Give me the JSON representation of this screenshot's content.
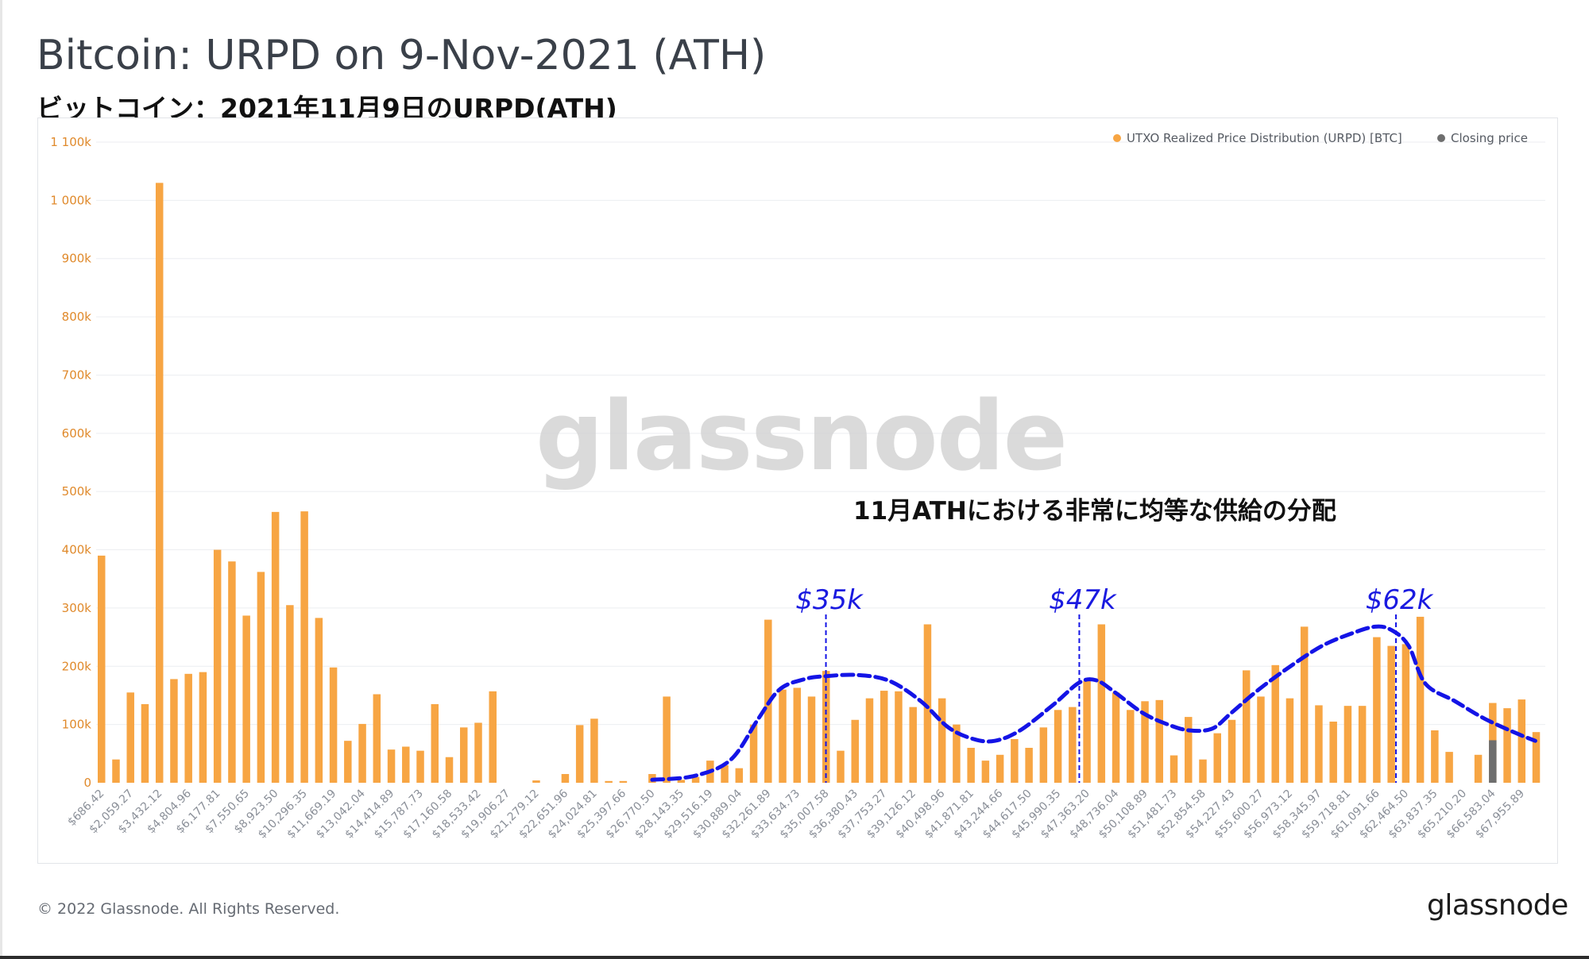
{
  "header": {
    "title": "Bitcoin: URPD on 9-Nov-2021 (ATH)",
    "subtitle": "ビットコイン：2021年11月9日のURPD(ATH)"
  },
  "footer": {
    "copyright": "© 2022 Glassnode. All Rights Reserved.",
    "logo": "glassnode"
  },
  "colors": {
    "bar": "#f7a543",
    "axis_text": "#e08a2c",
    "closing_price": "#6e6e6e",
    "curve": "#1414e6",
    "annotation_price": "#1a1ae0",
    "grid": "#eceef1",
    "watermark": "#d2d2d2"
  },
  "chart_data": {
    "type": "bar",
    "watermark": "glassnode",
    "legend": {
      "placement": "top-right",
      "items": [
        {
          "label": "UTXO Realized Price Distribution (URPD) [BTC]",
          "color": "#f7a543"
        },
        {
          "label": "Closing price",
          "color": "#6e6e6e"
        }
      ]
    },
    "ylim": [
      0,
      1100000
    ],
    "y_ticks": [
      {
        "value": 0,
        "label": "0"
      },
      {
        "value": 100000,
        "label": "100k"
      },
      {
        "value": 200000,
        "label": "200k"
      },
      {
        "value": 300000,
        "label": "300k"
      },
      {
        "value": 400000,
        "label": "400k"
      },
      {
        "value": 500000,
        "label": "500k"
      },
      {
        "value": 600000,
        "label": "600k"
      },
      {
        "value": 700000,
        "label": "700k"
      },
      {
        "value": 800000,
        "label": "800k"
      },
      {
        "value": 900000,
        "label": "900k"
      },
      {
        "value": 1000000,
        "label": "1 000k"
      },
      {
        "value": 1100000,
        "label": "1 100k"
      }
    ],
    "grid": true,
    "x_tick_labels": [
      "$686.42",
      "$2,059.27",
      "$3,432.12",
      "$4,804.96",
      "$6,177.81",
      "$7,550.65",
      "$8,923.50",
      "$10,296.35",
      "$11,669.19",
      "$13,042.04",
      "$14,414.89",
      "$15,787.73",
      "$17,160.58",
      "$18,533.42",
      "$19,906.27",
      "$21,279.12",
      "$22,651.96",
      "$24,024.81",
      "$25,397.66",
      "$26,770.50",
      "$28,143.35",
      "$29,516.19",
      "$30,889.04",
      "$32,261.89",
      "$33,634.73",
      "$35,007.58",
      "$36,380.43",
      "$37,753.27",
      "$39,126.12",
      "$40,498.96",
      "$41,871.81",
      "$43,244.66",
      "$44,617.50",
      "$45,990.35",
      "$47,363.20",
      "$48,736.04",
      "$50,108.89",
      "$51,481.73",
      "$52,854.58",
      "$54,227.43",
      "$55,600.27",
      "$56,973.12",
      "$58,345.97",
      "$59,718.81",
      "$61,091.66",
      "$62,464.50",
      "$63,837.35",
      "$65,210.20",
      "$66,583.04",
      "$67,955.89"
    ],
    "bin_width": 686.42,
    "bin_start": 686.42,
    "values": [
      390000,
      40000,
      155000,
      135000,
      1030000,
      178000,
      187000,
      190000,
      400000,
      380000,
      287000,
      362000,
      465000,
      305000,
      466000,
      283000,
      198000,
      72000,
      101000,
      152000,
      57000,
      62000,
      55000,
      135000,
      44000,
      95000,
      103000,
      157000,
      0,
      0,
      4000,
      0,
      15000,
      99000,
      110000,
      3000,
      3000,
      0,
      15000,
      148000,
      5000,
      10000,
      38000,
      30000,
      25000,
      100000,
      280000,
      160000,
      163000,
      148000,
      192000,
      55000,
      108000,
      145000,
      158000,
      157000,
      130000,
      272000,
      145000,
      100000,
      60000,
      38000,
      48000,
      75000,
      60000,
      95000,
      125000,
      130000,
      175000,
      272000,
      155000,
      125000,
      140000,
      142000,
      47000,
      113000,
      40000,
      85000,
      108000,
      193000,
      148000,
      202000,
      145000,
      268000,
      133000,
      105000,
      132000,
      132000,
      250000,
      235000,
      238000,
      285000,
      90000,
      53000,
      0,
      48000,
      137000,
      128000,
      143000,
      87000
    ],
    "closing_price": {
      "value": 66900,
      "btc": 73000
    },
    "trend_curve": {
      "style": "dashed",
      "points": [
        [
          26770,
          5000
        ],
        [
          28800,
          12000
        ],
        [
          30500,
          40000
        ],
        [
          31800,
          110000
        ],
        [
          32800,
          160000
        ],
        [
          34000,
          178000
        ],
        [
          35000,
          183000
        ],
        [
          36500,
          185000
        ],
        [
          38000,
          175000
        ],
        [
          39500,
          140000
        ],
        [
          40800,
          95000
        ],
        [
          42000,
          75000
        ],
        [
          43000,
          72000
        ],
        [
          44200,
          90000
        ],
        [
          45800,
          135000
        ],
        [
          47000,
          172000
        ],
        [
          47800,
          176000
        ],
        [
          48700,
          155000
        ],
        [
          50000,
          120000
        ],
        [
          51200,
          100000
        ],
        [
          52200,
          90000
        ],
        [
          53300,
          93000
        ],
        [
          54200,
          120000
        ],
        [
          55500,
          160000
        ],
        [
          57000,
          200000
        ],
        [
          58500,
          235000
        ],
        [
          59800,
          255000
        ],
        [
          61000,
          268000
        ],
        [
          61800,
          262000
        ],
        [
          62600,
          235000
        ],
        [
          63400,
          170000
        ],
        [
          64800,
          140000
        ],
        [
          66200,
          110000
        ],
        [
          67700,
          85000
        ],
        [
          68600,
          72000
        ]
      ]
    },
    "annotations": [
      {
        "label": "$35k",
        "x": 35000
      },
      {
        "label": "$47k",
        "x": 47000
      },
      {
        "label": "$62k",
        "x": 62000
      }
    ],
    "callout": "11月ATHにおける非常に均等な供給の分配"
  }
}
